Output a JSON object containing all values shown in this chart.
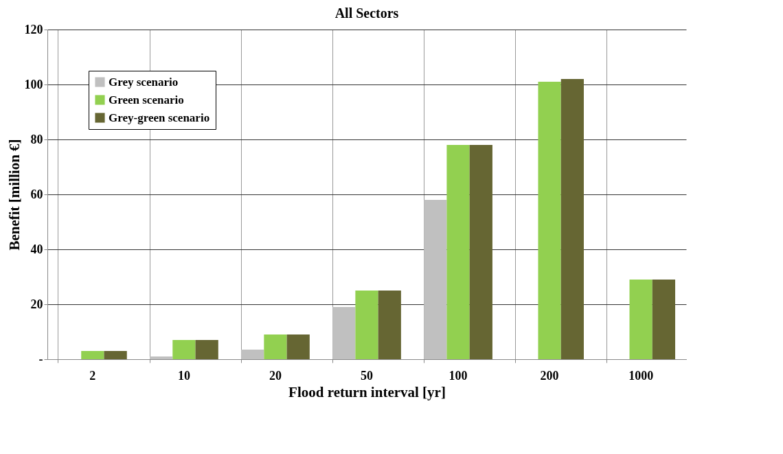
{
  "chart_data": {
    "type": "bar",
    "title": "All Sectors",
    "xlabel": "Flood return interval [yr]",
    "ylabel": "Benefit [million €]",
    "categories": [
      "2",
      "10",
      "20",
      "50",
      "100",
      "200",
      "1000"
    ],
    "series": [
      {
        "name": "Grey scenario",
        "color": "#c0c0c0",
        "values": [
          0,
          1,
          3.5,
          19,
          58,
          0,
          0
        ]
      },
      {
        "name": "Green scenario",
        "color": "#92d050",
        "values": [
          3,
          7,
          9,
          25,
          78,
          101,
          29
        ]
      },
      {
        "name": "Grey-green scenario",
        "color": "#666633",
        "values": [
          3,
          7,
          9,
          25,
          78,
          102,
          29
        ]
      }
    ],
    "ylim": [
      0,
      120
    ],
    "yticks": [
      {
        "value": 0,
        "label": "-"
      },
      20,
      40,
      60,
      80,
      100,
      120
    ],
    "grid": true,
    "legend": "top left"
  }
}
